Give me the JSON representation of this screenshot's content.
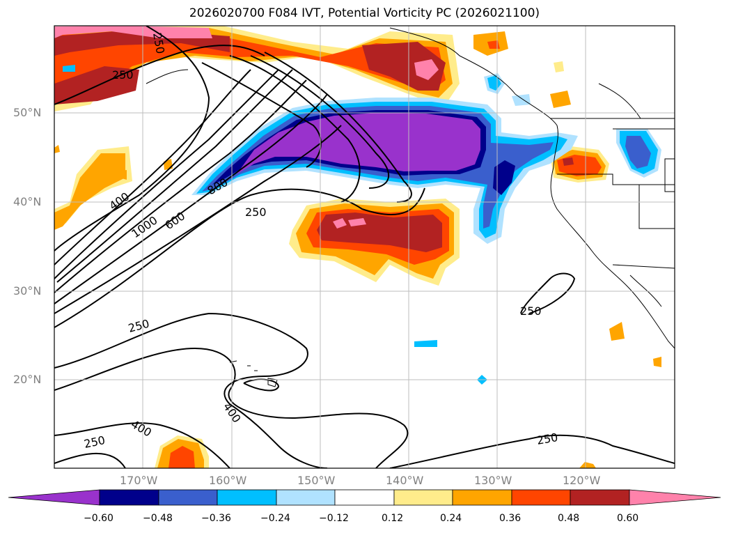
{
  "title": "2026020700 F084 IVT, Potential Vorticity PC (2026021100)",
  "lat_labels": [
    "50°N",
    "40°N",
    "30°N",
    "20°N"
  ],
  "lon_labels": [
    "170°W",
    "160°W",
    "150°W",
    "140°W",
    "130°W",
    "120°W"
  ],
  "contour_labels": [
    "250",
    "250",
    "400",
    "1000",
    "600",
    "800",
    "250",
    "250",
    "250",
    "400",
    "400",
    "250",
    "250"
  ],
  "colorbar": {
    "tick_labels": [
      "−0.60",
      "−0.48",
      "−0.36",
      "−0.24",
      "−0.12",
      "0.12",
      "0.24",
      "0.36",
      "0.48",
      "0.60"
    ],
    "colors": [
      "#9932cc",
      "#00008b",
      "#3a5fcd",
      "#00bfff",
      "#b0e2ff",
      "#ffffff",
      "#ffec8b",
      "#ffa500",
      "#ff4500",
      "#b22222",
      "#ff82ab"
    ]
  }
}
